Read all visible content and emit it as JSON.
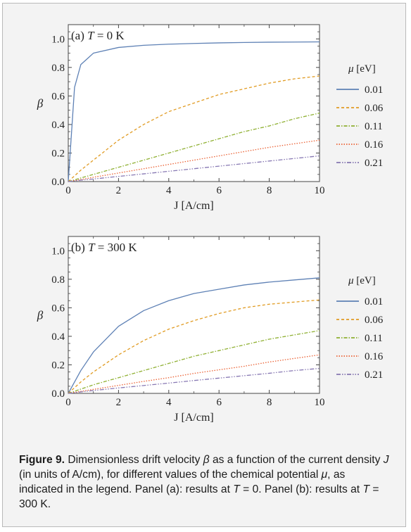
{
  "chart_data": [
    {
      "type": "line",
      "panel_label": "(a)",
      "title": "T = 0 K",
      "title_var": "T",
      "title_rest": " = 0 K",
      "xlabel": "J [A/cm]",
      "ylabel": "β",
      "xlim": [
        0,
        10
      ],
      "ylim": [
        0,
        1.1
      ],
      "xticks": [
        "0",
        "2",
        "4",
        "6",
        "8",
        "10"
      ],
      "yticks": [
        "0.0",
        "0.2",
        "0.4",
        "0.6",
        "0.8",
        "1.0"
      ],
      "legend_title": "μ [eV]",
      "legend_position": "right",
      "x": [
        0,
        0.25,
        0.5,
        1,
        2,
        3,
        4,
        5,
        6,
        7,
        8,
        9,
        10
      ],
      "series": [
        {
          "name": "0.01",
          "color": "#5e81b5",
          "dash": "solid",
          "values": [
            0,
            0.66,
            0.82,
            0.9,
            0.94,
            0.955,
            0.963,
            0.968,
            0.972,
            0.975,
            0.977,
            0.978,
            0.979
          ]
        },
        {
          "name": "0.06",
          "color": "#e19c24",
          "dash": "dashed",
          "values": [
            0,
            0.04,
            0.08,
            0.15,
            0.29,
            0.4,
            0.49,
            0.55,
            0.61,
            0.65,
            0.69,
            0.72,
            0.74
          ]
        },
        {
          "name": "0.11",
          "color": "#8fb032",
          "dash": "dashdot",
          "values": [
            0,
            0.012,
            0.025,
            0.05,
            0.1,
            0.15,
            0.2,
            0.25,
            0.3,
            0.35,
            0.39,
            0.44,
            0.48
          ]
        },
        {
          "name": "0.16",
          "color": "#eb6235",
          "dash": "dotted",
          "values": [
            0,
            0.007,
            0.014,
            0.03,
            0.06,
            0.09,
            0.12,
            0.15,
            0.18,
            0.21,
            0.24,
            0.265,
            0.29
          ]
        },
        {
          "name": "0.21",
          "color": "#8778b3",
          "dash": "dashdotdot",
          "values": [
            0,
            0.005,
            0.01,
            0.018,
            0.036,
            0.054,
            0.072,
            0.09,
            0.108,
            0.126,
            0.144,
            0.162,
            0.18
          ]
        }
      ]
    },
    {
      "type": "line",
      "panel_label": "(b)",
      "title": "T = 300 K",
      "title_var": "T",
      "title_rest": " = 300 K",
      "xlabel": "J [A/cm]",
      "ylabel": "β",
      "xlim": [
        0,
        10
      ],
      "ylim": [
        0,
        1.1
      ],
      "xticks": [
        "0",
        "2",
        "4",
        "6",
        "8",
        "10"
      ],
      "yticks": [
        "0.0",
        "0.2",
        "0.4",
        "0.6",
        "0.8",
        "1.0"
      ],
      "legend_title": "μ [eV]",
      "legend_position": "right",
      "x": [
        0,
        0.25,
        0.5,
        1,
        2,
        3,
        4,
        5,
        6,
        7,
        8,
        9,
        10
      ],
      "series": [
        {
          "name": "0.01",
          "color": "#5e81b5",
          "dash": "solid",
          "values": [
            0,
            0.08,
            0.16,
            0.29,
            0.47,
            0.58,
            0.65,
            0.7,
            0.73,
            0.76,
            0.78,
            0.795,
            0.81
          ]
        },
        {
          "name": "0.06",
          "color": "#e19c24",
          "dash": "dashed",
          "values": [
            0,
            0.04,
            0.08,
            0.15,
            0.27,
            0.37,
            0.45,
            0.51,
            0.56,
            0.6,
            0.625,
            0.64,
            0.655
          ]
        },
        {
          "name": "0.11",
          "color": "#8fb032",
          "dash": "dashdot",
          "values": [
            0,
            0.015,
            0.03,
            0.06,
            0.11,
            0.16,
            0.21,
            0.26,
            0.3,
            0.34,
            0.38,
            0.41,
            0.44
          ]
        },
        {
          "name": "0.16",
          "color": "#eb6235",
          "dash": "dotted",
          "values": [
            0,
            0.007,
            0.014,
            0.028,
            0.056,
            0.084,
            0.11,
            0.14,
            0.165,
            0.19,
            0.22,
            0.245,
            0.27
          ]
        },
        {
          "name": "0.21",
          "color": "#8778b3",
          "dash": "dashdotdot",
          "values": [
            0,
            0.005,
            0.01,
            0.02,
            0.038,
            0.055,
            0.072,
            0.09,
            0.107,
            0.124,
            0.141,
            0.16,
            0.175
          ]
        }
      ]
    }
  ],
  "caption": {
    "figure_label": "Figure 9.",
    "text_1": " Dimensionless drift velocity ",
    "var_beta": "β",
    "text_2": " as a function of the current density ",
    "var_J": "J",
    "text_3": " (in units of A/cm), for different values of the chemical potential ",
    "var_mu": "μ",
    "text_4": ", as indicated in the legend. Panel (a): results at ",
    "var_T1": "T",
    "text_5": " = 0. Panel (b): results at ",
    "var_T2": "T",
    "text_6": " = 300 K."
  }
}
